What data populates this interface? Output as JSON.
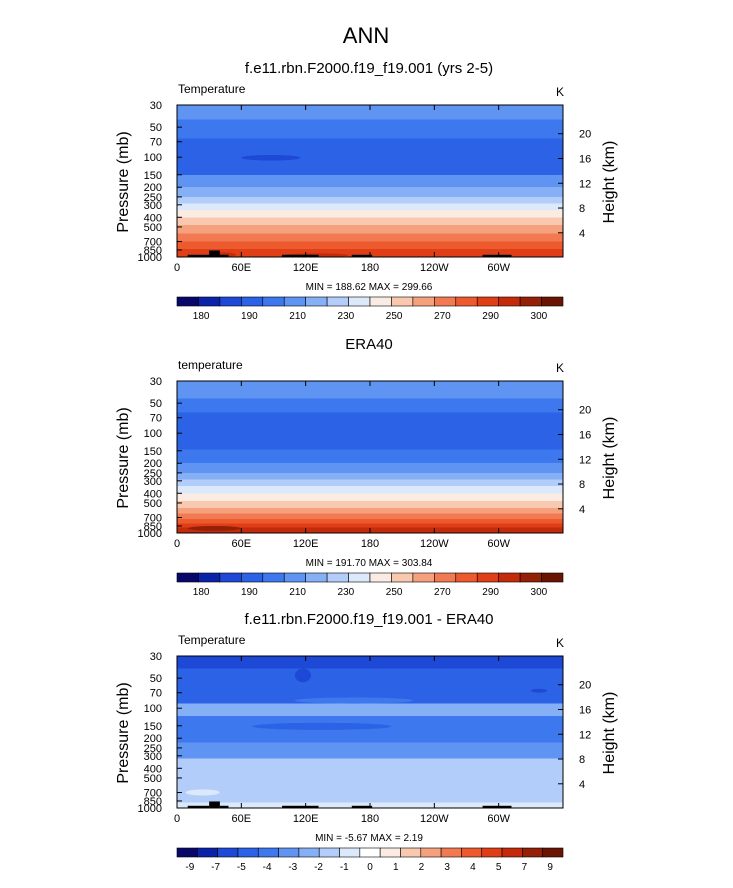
{
  "page_title": "ANN",
  "colors": {
    "base": [
      "#08086b",
      "#0b23a8",
      "#1e48d6",
      "#2c62e6",
      "#3d78ef",
      "#5f94f3",
      "#86b0f6",
      "#b3cdfa",
      "#dce9fb",
      "#fbece3",
      "#f8c9ae",
      "#f5a17d",
      "#f27a52",
      "#ec5a2e",
      "#e03e16",
      "#c32b0a",
      "#932007",
      "#6a1503"
    ],
    "diff": [
      "#08086b",
      "#0b23a8",
      "#1e48d6",
      "#2c62e6",
      "#3d78ef",
      "#5f94f3",
      "#86b0f6",
      "#b3cdfa",
      "#dce9fb",
      "#ffffff",
      "#fbece3",
      "#f8c9ae",
      "#f5a17d",
      "#f27a52",
      "#ec5a2e",
      "#e03e16",
      "#c32b0a",
      "#932007",
      "#6a1503"
    ],
    "land": "#000000"
  },
  "chart_data": [
    {
      "type": "heatmap",
      "title": "f.e11.rbn.F2000.f19_f19.001 (yrs 2-5)",
      "left_label": "Temperature",
      "units": "K",
      "ylabel": "Pressure (mb)",
      "ylabel_right": "Height (km)",
      "x_ticks": [
        "0",
        "60E",
        "120E",
        "180",
        "120W",
        "60W"
      ],
      "x_tick_values": [
        0,
        60,
        120,
        180,
        240,
        300
      ],
      "xlim": [
        0,
        360
      ],
      "y_ticks": [
        "30",
        "50",
        "70",
        "100",
        "150",
        "200",
        "250",
        "300",
        "400",
        "500",
        "700",
        "850",
        "1000"
      ],
      "y_tick_values": [
        30,
        50,
        70,
        100,
        150,
        200,
        250,
        300,
        400,
        500,
        700,
        850,
        1000
      ],
      "ylim": [
        1000,
        30
      ],
      "y_scale": "log",
      "height_ticks": [
        "20",
        "16",
        "12",
        "8",
        "4"
      ],
      "min_max_text": "MIN = 188.62  MAX = 299.66",
      "colorbar_labels": [
        "180",
        "190",
        "210",
        "230",
        "250",
        "270",
        "290",
        "300"
      ],
      "palette": "base",
      "layers": [
        {
          "p": [
            30,
            42
          ],
          "level": 5
        },
        {
          "p": [
            42,
            65
          ],
          "level": 4
        },
        {
          "p": [
            65,
            150
          ],
          "level": 3
        },
        {
          "p": [
            150,
            200
          ],
          "level": 5
        },
        {
          "p": [
            200,
            250
          ],
          "level": 6
        },
        {
          "p": [
            250,
            290
          ],
          "level": 7
        },
        {
          "p": [
            290,
            340
          ],
          "level": 8
        },
        {
          "p": [
            340,
            400
          ],
          "level": 9
        },
        {
          "p": [
            400,
            480
          ],
          "level": 10
        },
        {
          "p": [
            480,
            580
          ],
          "level": 11
        },
        {
          "p": [
            580,
            700
          ],
          "level": 12
        },
        {
          "p": [
            700,
            830
          ],
          "level": 13
        },
        {
          "p": [
            830,
            1000
          ],
          "level": 14
        }
      ],
      "features": [
        {
          "lon": [
            60,
            115
          ],
          "p": [
            95,
            108
          ],
          "level": 2
        },
        {
          "lon": [
            30,
            55
          ],
          "p": [
            900,
            1000
          ],
          "level": 15
        },
        {
          "lon": [
            100,
            160
          ],
          "p": [
            920,
            1000
          ],
          "level": 15
        }
      ],
      "land": [
        {
          "lon": [
            10,
            30
          ],
          "p": 950
        },
        {
          "lon": [
            30,
            40
          ],
          "p": 860
        },
        {
          "lon": [
            40,
            48
          ],
          "p": 950
        },
        {
          "lon": [
            98,
            132
          ],
          "p": 950
        },
        {
          "lon": [
            163,
            182
          ],
          "p": 950
        },
        {
          "lon": [
            285,
            312
          ],
          "p": 950
        }
      ]
    },
    {
      "type": "heatmap",
      "title": "ERA40",
      "left_label": "temperature",
      "units": "K",
      "ylabel": "Pressure (mb)",
      "ylabel_right": "Height (km)",
      "x_ticks": [
        "0",
        "60E",
        "120E",
        "180",
        "120W",
        "60W"
      ],
      "x_tick_values": [
        0,
        60,
        120,
        180,
        240,
        300
      ],
      "xlim": [
        0,
        360
      ],
      "y_ticks": [
        "30",
        "50",
        "70",
        "100",
        "150",
        "200",
        "250",
        "300",
        "400",
        "500",
        "700",
        "850",
        "1000"
      ],
      "y_tick_values": [
        30,
        50,
        70,
        100,
        150,
        200,
        250,
        300,
        400,
        500,
        700,
        850,
        1000
      ],
      "ylim": [
        1000,
        30
      ],
      "y_scale": "log",
      "height_ticks": [
        "20",
        "16",
        "12",
        "8",
        "4"
      ],
      "min_max_text": "MIN = 191.70  MAX = 303.84",
      "colorbar_labels": [
        "180",
        "190",
        "210",
        "230",
        "250",
        "270",
        "290",
        "300"
      ],
      "palette": "base",
      "layers": [
        {
          "p": [
            30,
            45
          ],
          "level": 5
        },
        {
          "p": [
            45,
            62
          ],
          "level": 4
        },
        {
          "p": [
            62,
            145
          ],
          "level": 3
        },
        {
          "p": [
            145,
            200
          ],
          "level": 4
        },
        {
          "p": [
            200,
            250
          ],
          "level": 5
        },
        {
          "p": [
            250,
            290
          ],
          "level": 6
        },
        {
          "p": [
            290,
            340
          ],
          "level": 7
        },
        {
          "p": [
            340,
            400
          ],
          "level": 8
        },
        {
          "p": [
            400,
            480
          ],
          "level": 9
        },
        {
          "p": [
            480,
            560
          ],
          "level": 10
        },
        {
          "p": [
            560,
            640
          ],
          "level": 11
        },
        {
          "p": [
            640,
            720
          ],
          "level": 12
        },
        {
          "p": [
            720,
            800
          ],
          "level": 13
        },
        {
          "p": [
            800,
            880
          ],
          "level": 14
        },
        {
          "p": [
            880,
            1000
          ],
          "level": 15
        }
      ],
      "features": [
        {
          "lon": [
            10,
            60
          ],
          "p": [
            850,
            950
          ],
          "level": 16
        }
      ],
      "land": []
    },
    {
      "type": "heatmap",
      "title": "f.e11.rbn.F2000.f19_f19.001 - ERA40",
      "left_label": "Temperature",
      "units": "K",
      "ylabel": "Pressure (mb)",
      "ylabel_right": "Height (km)",
      "x_ticks": [
        "0",
        "60E",
        "120E",
        "180",
        "120W",
        "60W"
      ],
      "x_tick_values": [
        0,
        60,
        120,
        180,
        240,
        300
      ],
      "xlim": [
        0,
        360
      ],
      "y_ticks": [
        "30",
        "50",
        "70",
        "100",
        "150",
        "200",
        "250",
        "300",
        "400",
        "500",
        "700",
        "850",
        "1000"
      ],
      "y_tick_values": [
        30,
        50,
        70,
        100,
        150,
        200,
        250,
        300,
        400,
        500,
        700,
        850,
        1000
      ],
      "ylim": [
        1000,
        30
      ],
      "y_scale": "log",
      "height_ticks": [
        "20",
        "16",
        "12",
        "8",
        "4"
      ],
      "min_max_text": "MIN = -5.67  MAX =  2.19",
      "colorbar_labels": [
        "-9",
        "-7",
        "-5",
        "-4",
        "-3",
        "-2",
        "-1",
        "0",
        "1",
        "2",
        "3",
        "4",
        "5",
        "7",
        "9"
      ],
      "palette": "diff",
      "layers": [
        {
          "p": [
            30,
            40
          ],
          "level": 2
        },
        {
          "p": [
            40,
            90
          ],
          "level": 3
        },
        {
          "p": [
            90,
            120
          ],
          "level": 6
        },
        {
          "p": [
            120,
            220
          ],
          "level": 4
        },
        {
          "p": [
            220,
            320
          ],
          "level": 5
        },
        {
          "p": [
            320,
            880
          ],
          "level": 7
        },
        {
          "p": [
            880,
            1000
          ],
          "level": 8
        }
      ],
      "features": [
        {
          "lon": [
            70,
            200
          ],
          "p": [
            140,
            165
          ],
          "level": 3
        },
        {
          "lon": [
            110,
            220
          ],
          "p": [
            78,
            90
          ],
          "level": 4
        },
        {
          "lon": [
            330,
            345
          ],
          "p": [
            64,
            70
          ],
          "level": 2
        },
        {
          "lon": [
            110,
            125
          ],
          "p": [
            40,
            55
          ],
          "level": 2
        },
        {
          "lon": [
            8,
            40
          ],
          "p": [
            650,
            750
          ],
          "level": 8
        }
      ],
      "land": [
        {
          "lon": [
            10,
            30
          ],
          "p": 950
        },
        {
          "lon": [
            30,
            40
          ],
          "p": 860
        },
        {
          "lon": [
            40,
            48
          ],
          "p": 950
        },
        {
          "lon": [
            98,
            132
          ],
          "p": 950
        },
        {
          "lon": [
            163,
            182
          ],
          "p": 950
        },
        {
          "lon": [
            285,
            312
          ],
          "p": 950
        }
      ]
    }
  ]
}
